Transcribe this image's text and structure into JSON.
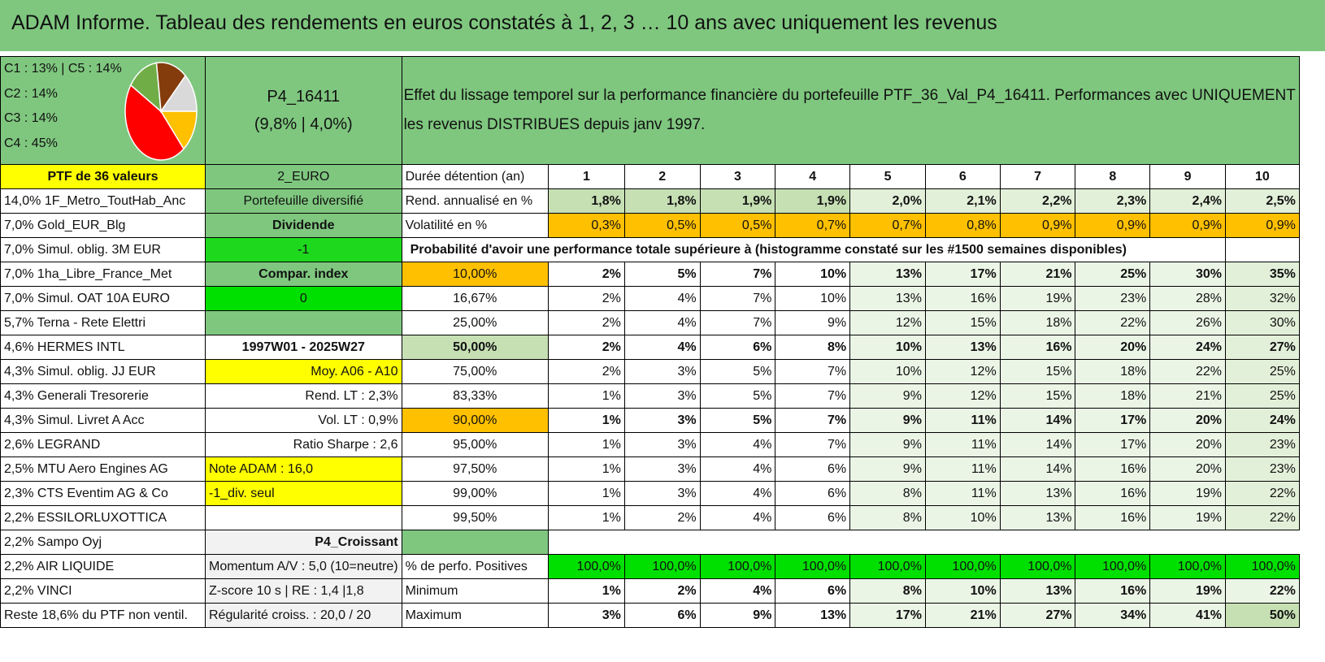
{
  "title": "ADAM Informe. Tableau des rendements en euros constatés à 1, 2, 3 … 10 ans avec uniquement les revenus",
  "composition": {
    "lines": [
      "C1 : 13% | C5 : 14%",
      "C2 : 14%",
      "C3 : 14%",
      "C4 : 45%"
    ],
    "slices": [
      {
        "name": "C4",
        "value": 45,
        "color": "#ff0000"
      },
      {
        "name": "C3",
        "value": 14,
        "color": "#70ad47"
      },
      {
        "name": "C2",
        "value": 14,
        "color": "#843c0c"
      },
      {
        "name": "C1",
        "value": 13,
        "color": "#d9d9d9"
      },
      {
        "name": "C5",
        "value": 14,
        "color": "#ffc000"
      }
    ]
  },
  "portfolio": {
    "code": "P4_16411",
    "stats": "(9,8% | 4,0%)",
    "description_1": "Effet du lissage temporel sur la performance financière du portefeuille PTF_36_Val_P4_16411. Performances avec UNIQUEMENT",
    "description_2": "les revenus DISTRIBUES depuis janv 1997."
  },
  "header_row": {
    "count_label": "PTF de 36 valeurs",
    "currency": "2_EURO",
    "duration_label": "Durée détention (an)",
    "years": [
      "1",
      "2",
      "3",
      "4",
      "5",
      "6",
      "7",
      "8",
      "9",
      "10"
    ]
  },
  "rend_row": {
    "holding": "14,0% 1F_Metro_ToutHab_Anc",
    "info": "Portefeuille diversifié",
    "label": "Rend. annualisé en %",
    "values": [
      "1,8%",
      "1,8%",
      "1,9%",
      "1,9%",
      "2,0%",
      "2,1%",
      "2,2%",
      "2,3%",
      "2,4%",
      "2,5%"
    ]
  },
  "vol_row": {
    "holding": "7,0% Gold_EUR_Blg",
    "info": "Dividende",
    "label": "Volatilité en %",
    "values": [
      "0,3%",
      "0,5%",
      "0,5%",
      "0,7%",
      "0,7%",
      "0,8%",
      "0,9%",
      "0,9%",
      "0,9%",
      "0,9%"
    ]
  },
  "prob_header": {
    "holding": "7,0% Simul. oblig. 3M EUR",
    "info": "-1",
    "label": "Probabilité d'avoir une performance totale supérieure à (histogramme constaté sur les #1500 semaines disponibles)"
  },
  "prob_rows": [
    {
      "holding": "7,0% 1ha_Libre_France_Met",
      "info": "Compar. index",
      "pct": "10,00%",
      "values": [
        "2%",
        "5%",
        "7%",
        "10%",
        "13%",
        "17%",
        "21%",
        "25%",
        "30%",
        "35%"
      ]
    },
    {
      "holding": "7,0% Simul. OAT 10A EURO",
      "info": "0",
      "pct": "16,67%",
      "values": [
        "2%",
        "4%",
        "7%",
        "10%",
        "13%",
        "16%",
        "19%",
        "23%",
        "28%",
        "32%"
      ]
    },
    {
      "holding": "5,7% Terna - Rete Elettri",
      "info": "",
      "pct": "25,00%",
      "values": [
        "2%",
        "4%",
        "7%",
        "9%",
        "12%",
        "15%",
        "18%",
        "22%",
        "26%",
        "30%"
      ]
    },
    {
      "holding": "4,6% HERMES INTL",
      "info": "1997W01 - 2025W27",
      "pct": "50,00%",
      "values": [
        "2%",
        "4%",
        "6%",
        "8%",
        "10%",
        "13%",
        "16%",
        "20%",
        "24%",
        "27%"
      ]
    },
    {
      "holding": "4,3% Simul. oblig. JJ EUR",
      "info": "Moy. A06 - A10",
      "pct": "75,00%",
      "values": [
        "2%",
        "3%",
        "5%",
        "7%",
        "10%",
        "12%",
        "15%",
        "18%",
        "22%",
        "25%"
      ]
    },
    {
      "holding": "4,3% Generali Tresorerie",
      "info": "Rend. LT : 2,3%",
      "pct": "83,33%",
      "values": [
        "1%",
        "3%",
        "5%",
        "7%",
        "9%",
        "12%",
        "15%",
        "18%",
        "21%",
        "25%"
      ]
    },
    {
      "holding": "4,3% Simul. Livret A Acc",
      "info": "Vol. LT : 0,9%",
      "pct": "90,00%",
      "values": [
        "1%",
        "3%",
        "5%",
        "7%",
        "9%",
        "11%",
        "14%",
        "17%",
        "20%",
        "24%"
      ]
    },
    {
      "holding": "2,6% LEGRAND",
      "info": "Ratio Sharpe : 2,6",
      "pct": "95,00%",
      "values": [
        "1%",
        "3%",
        "4%",
        "7%",
        "9%",
        "11%",
        "14%",
        "17%",
        "20%",
        "23%"
      ]
    },
    {
      "holding": "2,5% MTU Aero Engines AG",
      "info": "Note ADAM : 16,0",
      "pct": "97,50%",
      "values": [
        "1%",
        "3%",
        "4%",
        "6%",
        "9%",
        "11%",
        "14%",
        "16%",
        "20%",
        "23%"
      ]
    },
    {
      "holding": "2,3% CTS Eventim AG & Co",
      "info": "-1_div. seul",
      "pct": "99,00%",
      "values": [
        "1%",
        "3%",
        "4%",
        "6%",
        "8%",
        "11%",
        "13%",
        "16%",
        "19%",
        "22%"
      ]
    },
    {
      "holding": "2,2% ESSILORLUXOTTICA",
      "info": "",
      "pct": "99,50%",
      "values": [
        "1%",
        "2%",
        "4%",
        "6%",
        "8%",
        "10%",
        "13%",
        "16%",
        "19%",
        "22%"
      ]
    }
  ],
  "sampo_row": {
    "holding": "2,2% Sampo Oyj",
    "info": "P4_Croissant"
  },
  "summary_rows": [
    {
      "holding": "2,2% AIR LIQUIDE",
      "info": "Momentum A/V : 5,0 (10=neutre)",
      "label": "% de perfo. Positives",
      "values": [
        "100,0%",
        "100,0%",
        "100,0%",
        "100,0%",
        "100,0%",
        "100,0%",
        "100,0%",
        "100,0%",
        "100,0%",
        "100,0%"
      ]
    },
    {
      "holding": "2,2% VINCI",
      "info": "Z-score 10 s | RE : 1,4 |1,8",
      "label": "Minimum",
      "values": [
        "1%",
        "2%",
        "4%",
        "6%",
        "8%",
        "10%",
        "13%",
        "16%",
        "19%",
        "22%"
      ]
    },
    {
      "holding": "Reste 18,6% du PTF non ventil.",
      "info": "Régularité croiss. : 20,0 / 20",
      "label": "Maximum",
      "values": [
        "3%",
        "6%",
        "9%",
        "13%",
        "17%",
        "21%",
        "27%",
        "34%",
        "41%",
        "50%"
      ]
    }
  ]
}
